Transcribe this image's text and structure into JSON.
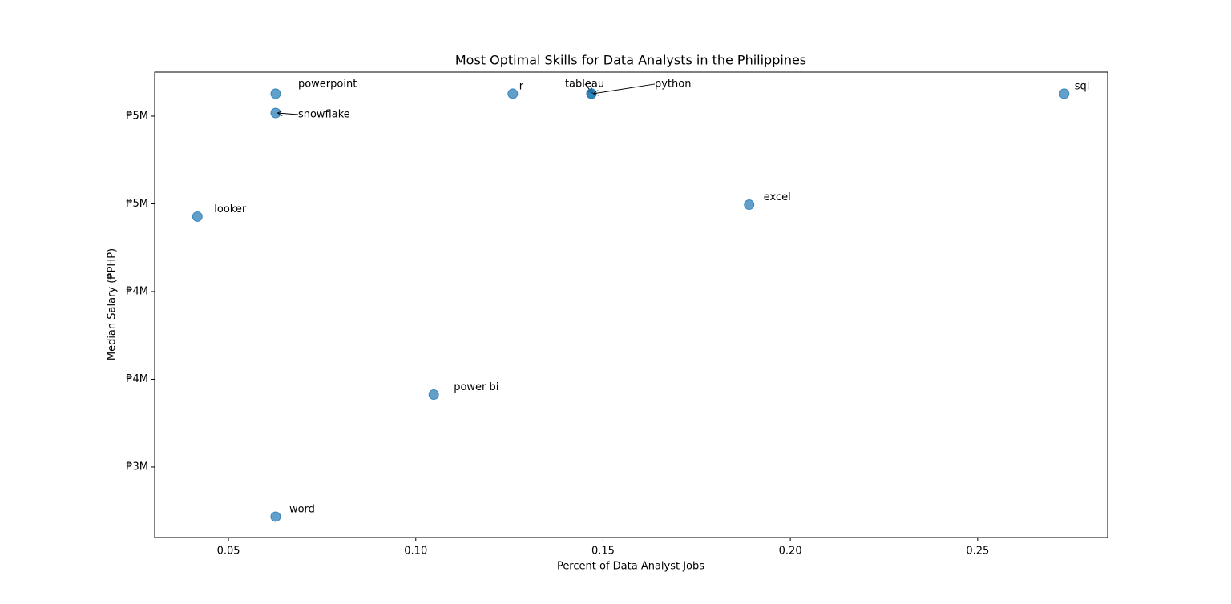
{
  "chart_data": {
    "type": "scatter",
    "title": "Most Optimal Skills for Data Analysts in the Philippines",
    "x_label": "Percent of Data Analyst Jobs",
    "y_label": "Median Salary (₱PHP)",
    "labels": [
      "powerpoint",
      "snowflake",
      "r",
      "tableau",
      "python",
      "sql",
      "excel",
      "looker",
      "power bi",
      "word"
    ],
    "x": [
      0.0626,
      0.0626,
      0.1259,
      0.1469,
      0.1469,
      0.2731,
      0.189,
      0.0417,
      0.1048,
      0.0626
    ],
    "values": [
      5628000,
      5518000,
      5628000,
      5628000,
      5628000,
      5628000,
      4995000,
      4927000,
      3913000,
      3217000
    ],
    "color": "#1f77b4",
    "xlim": [
      0.0303,
      0.2847
    ],
    "ylim": [
      3098000,
      5751000
    ],
    "xticks": [
      0.05,
      {
        "value": 0.1,
        "label": "0.10"
      },
      0.15,
      {
        "value": 0.2,
        "label": "0.20"
      },
      0.25
    ],
    "yticks": [
      {
        "value": 3500000,
        "label": "₱3M"
      },
      {
        "value": 4000000,
        "label": "₱4M"
      },
      {
        "value": 4500000,
        "label": "₱4M"
      },
      {
        "value": 5000000,
        "label": "₱5M"
      },
      {
        "value": 5500000,
        "label": "₱5M"
      }
    ],
    "grid": false
  }
}
